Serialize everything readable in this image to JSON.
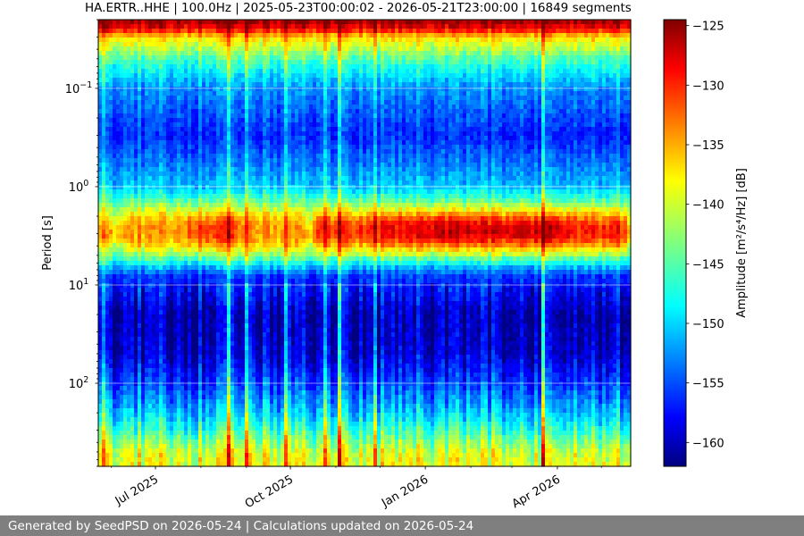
{
  "chart_data": {
    "type": "heatmap",
    "title": "HA.ERTR..HHE | 100.0Hz | 2025-05-23T00:00:02 - 2026-05-21T23:00:00 | 16849 segments",
    "ylabel": "Period [s]",
    "y_scale": "log",
    "y_inverted": true,
    "ylim": [
      0.02,
      700
    ],
    "xlim": [
      "2025-05-23",
      "2026-05-21"
    ],
    "x_ticks": [
      {
        "date": "2025-07-01",
        "label": "Jul 2025"
      },
      {
        "date": "2025-10-01",
        "label": "Oct 2025"
      },
      {
        "date": "2026-01-01",
        "label": "Jan 2026"
      },
      {
        "date": "2026-04-01",
        "label": "Apr 2026"
      }
    ],
    "y_ticks": [
      {
        "value": 0.1,
        "base": "10",
        "exp": "−1"
      },
      {
        "value": 1,
        "base": "10",
        "exp": "0"
      },
      {
        "value": 10,
        "base": "10",
        "exp": "1"
      },
      {
        "value": 100,
        "base": "10",
        "exp": "2"
      }
    ],
    "grid": true,
    "colorbar": {
      "label": "Amplitude [m²/s⁴/Hz] [dB]",
      "cmap": "jet",
      "range": [
        -162,
        -124.5
      ],
      "ticks": [
        {
          "value": -125,
          "label": "−125"
        },
        {
          "value": -130,
          "label": "−130"
        },
        {
          "value": -135,
          "label": "−135"
        },
        {
          "value": -140,
          "label": "−140"
        },
        {
          "value": -145,
          "label": "−145"
        },
        {
          "value": -150,
          "label": "−150"
        },
        {
          "value": -155,
          "label": "−155"
        },
        {
          "value": -160,
          "label": "−160"
        }
      ]
    },
    "period_profile_db": [
      {
        "period": 0.02,
        "db": -125
      },
      {
        "period": 0.025,
        "db": -129
      },
      {
        "period": 0.03,
        "db": -137
      },
      {
        "period": 0.05,
        "db": -145
      },
      {
        "period": 0.1,
        "db": -152
      },
      {
        "period": 0.3,
        "db": -156
      },
      {
        "period": 1,
        "db": -150
      },
      {
        "period": 2,
        "db": -140
      },
      {
        "period": 3,
        "db": -135
      },
      {
        "period": 5,
        "db": -144
      },
      {
        "period": 8,
        "db": -155
      },
      {
        "period": 20,
        "db": -160
      },
      {
        "period": 50,
        "db": -159
      },
      {
        "period": 100,
        "db": -155
      },
      {
        "period": 200,
        "db": -150
      },
      {
        "period": 300,
        "db": -146
      },
      {
        "period": 500,
        "db": -140
      },
      {
        "period": 700,
        "db": -139
      }
    ],
    "microseism_peaks": [
      {
        "date": "2025-07-05",
        "db": -135
      },
      {
        "date": "2025-08-08",
        "db": -131
      },
      {
        "date": "2025-09-15",
        "db": -135
      },
      {
        "date": "2025-11-10",
        "db": -131
      },
      {
        "date": "2025-12-10",
        "db": -129
      },
      {
        "date": "2026-01-15",
        "db": -127
      },
      {
        "date": "2026-02-05",
        "db": -128
      },
      {
        "date": "2026-03-20",
        "db": -127
      },
      {
        "date": "2026-04-25",
        "db": -130
      }
    ]
  },
  "footer": {
    "text": "Generated by SeedPSD on 2026-05-24 | Calculations updated on 2026-05-24"
  }
}
